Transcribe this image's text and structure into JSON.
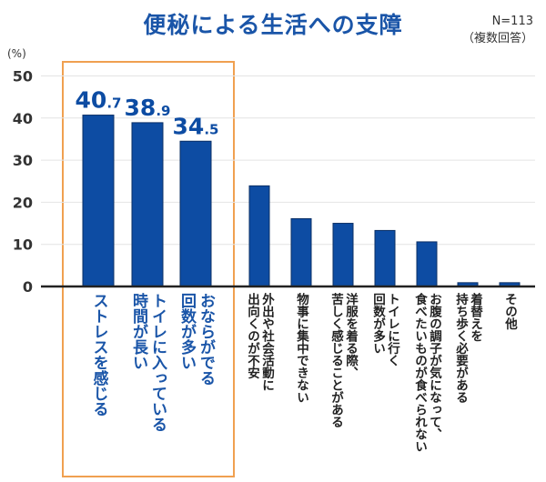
{
  "chart_data": {
    "type": "bar",
    "title": "便秘による生活への支障",
    "note": [
      "N=113",
      "（複数回答）"
    ],
    "ylabel": "(%)",
    "ylim": [
      0,
      50
    ],
    "yticks": [
      0,
      10,
      20,
      30,
      40,
      50
    ],
    "grid": true,
    "categories": [
      "ストレスを感じる",
      "トイレに入っている\n時間が長い",
      "おならがでる\n回数が多い",
      "外出や社会活動に\n出向くのが不安",
      "物事に集中できない",
      "洋服を着る際、\n苦しく感じることがある",
      "トイレに行く\n回数が多い",
      "お腹の調子が気になって、\n食べたいものが食べられない",
      "着替えを\n持ち歩く必要がある",
      "その他"
    ],
    "values": [
      40.7,
      38.9,
      34.5,
      23.9,
      16.1,
      15.0,
      13.3,
      10.6,
      0.9,
      0.9
    ],
    "data_labels": [
      {
        "int": "40",
        "dec": ".7"
      },
      {
        "int": "38",
        "dec": ".9"
      },
      {
        "int": "34",
        "dec": ".5"
      }
    ],
    "highlighted": [
      0,
      1,
      2
    ],
    "colors": {
      "bar": "#0d4ca3",
      "highlight_border": "#f0a050",
      "title": "#1a55a8"
    }
  }
}
